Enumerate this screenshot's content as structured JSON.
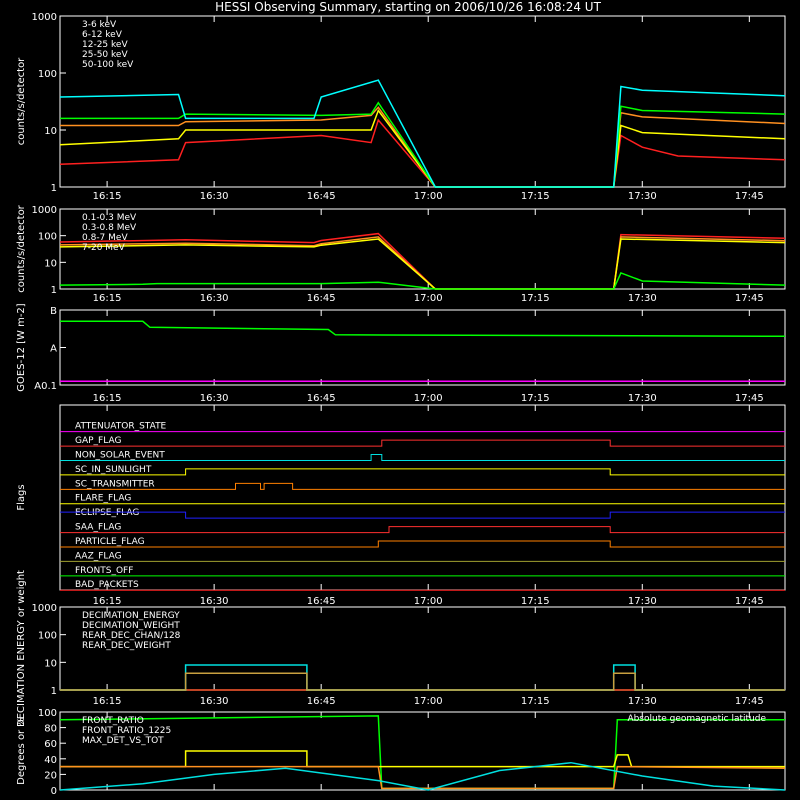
{
  "chart_data": {
    "title": "HESSI Observing Summary, starting on 2006/10/26 16:08:24 UT",
    "type": "line",
    "x_tick_labels": [
      "16:15",
      "16:30",
      "16:45",
      "17:00",
      "17:15",
      "17:30",
      "17:45"
    ],
    "time_range_minutes": [
      8.4,
      110
    ],
    "panels": [
      {
        "id": "low_energy",
        "type": "line",
        "ylabel": "counts/s/detector",
        "log_y": true,
        "ylim": [
          1,
          1000
        ],
        "y_tick_labels": [
          "1",
          "10",
          "100",
          "1000"
        ],
        "series": [
          {
            "name": "3-6 keV",
            "color": "#ff2020",
            "x": [
              8.4,
              25,
              26,
              45,
              52,
              53,
              61,
              61.5,
              86,
              87,
              90,
              95,
              110
            ],
            "y": [
              2.5,
              3,
              6,
              8,
              6,
              15,
              1,
              1,
              1,
              8,
              5,
              3.5,
              3
            ]
          },
          {
            "name": "6-12 keV",
            "color": "#ff9020",
            "x": [
              8.4,
              25,
              26,
              45,
              52,
              53,
              61,
              61.5,
              86,
              87,
              90,
              110
            ],
            "y": [
              12,
              12,
              14,
              15,
              18,
              25,
              1,
              1,
              1,
              20,
              17,
              13
            ]
          },
          {
            "name": "12-25 keV",
            "color": "#ffff00",
            "x": [
              8.4,
              25,
              26,
              45,
              52,
              53,
              61,
              61.5,
              86,
              87,
              90,
              110
            ],
            "y": [
              5.5,
              7,
              10,
              10,
              10,
              22,
              1,
              1,
              1,
              12,
              9,
              7
            ]
          },
          {
            "name": "25-50 keV",
            "color": "#00ff00",
            "x": [
              8.4,
              25,
              26,
              45,
              52,
              53,
              61,
              61.5,
              86,
              87,
              90,
              110
            ],
            "y": [
              16,
              16,
              19,
              18,
              19,
              30,
              1,
              1,
              1,
              26,
              22,
              19
            ]
          },
          {
            "name": "50-100 keV",
            "color": "#00ffff",
            "x": [
              8.4,
              25,
              26,
              44,
              45,
              53,
              61,
              61.5,
              86,
              87,
              90,
              110
            ],
            "y": [
              38,
              42,
              16,
              16,
              38,
              75,
              1,
              1,
              1,
              58,
              50,
              40
            ]
          }
        ]
      },
      {
        "id": "high_energy",
        "type": "line",
        "ylabel": "counts/s/detector",
        "log_y": true,
        "ylim": [
          1,
          1000
        ],
        "y_tick_labels": [
          "1",
          "10",
          "100",
          "1000"
        ],
        "series": [
          {
            "name": "0.1-0.3 MeV",
            "color": "#ff2020",
            "x": [
              8.4,
              26,
              44,
              45,
              53,
              61,
              61.5,
              86,
              87,
              110
            ],
            "y": [
              58,
              70,
              55,
              66,
              120,
              1,
              1,
              1,
              110,
              80
            ]
          },
          {
            "name": "0.3-0.8 MeV",
            "color": "#ff9020",
            "x": [
              8.4,
              26,
              44,
              45,
              53,
              61,
              61.5,
              86,
              87,
              110
            ],
            "y": [
              45,
              52,
              42,
              50,
              90,
              1,
              1,
              1,
              90,
              65
            ]
          },
          {
            "name": "0.8-7 MeV",
            "color": "#ffff00",
            "x": [
              8.4,
              26,
              44,
              45,
              53,
              61,
              61.5,
              86,
              87,
              110
            ],
            "y": [
              38,
              45,
              38,
              44,
              75,
              1,
              1,
              1,
              75,
              55
            ]
          },
          {
            "name": "7-20 MeV",
            "color": "#00ff00",
            "x": [
              8.4,
              20,
              22,
              45,
              53,
              61,
              61.5,
              86,
              87,
              90,
              110
            ],
            "y": [
              1.4,
              1.5,
              1.6,
              1.6,
              1.8,
              1,
              1,
              1,
              4,
              2,
              1.4
            ]
          }
        ]
      },
      {
        "id": "goes",
        "type": "line",
        "ylabel": "GOES-12 [W m-2]",
        "y_tick_labels": [
          "A0.1",
          "A",
          "B"
        ],
        "series": [
          {
            "color": "#00ff00",
            "x": [
              8.4,
              20,
              21,
              46,
              47,
              110
            ],
            "y": [
              0.85,
              0.85,
              0.77,
              0.74,
              0.67,
              0.65
            ]
          },
          {
            "color": "#ff00ff",
            "x": [
              8.4,
              110
            ],
            "y": [
              0.05,
              0.05
            ]
          }
        ]
      },
      {
        "id": "flags",
        "type": "step",
        "ylabel": "Flags",
        "flags": [
          {
            "name": "ATTENUATOR_STATE",
            "color": "#ff00ff",
            "segments": [
              [
                8.4,
                110,
                0
              ]
            ]
          },
          {
            "name": "GAP_FLAG",
            "color": "#ff3030",
            "segments": [
              [
                8.4,
                53.5,
                0
              ],
              [
                53.5,
                85.5,
                1
              ],
              [
                85.5,
                110,
                0
              ]
            ]
          },
          {
            "name": "NON_SOLAR_EVENT",
            "color": "#00e0e0",
            "segments": [
              [
                8.4,
                52,
                0
              ],
              [
                52,
                53.5,
                1
              ],
              [
                53.5,
                110,
                0
              ]
            ]
          },
          {
            "name": "SC_IN_SUNLIGHT",
            "color": "#ffff00",
            "segments": [
              [
                8.4,
                26,
                0
              ],
              [
                26,
                85.5,
                1
              ],
              [
                85.5,
                110,
                0
              ]
            ]
          },
          {
            "name": "SC_TRANSMITTER",
            "color": "#ff8000",
            "segments": [
              [
                8.4,
                33,
                0
              ],
              [
                33,
                36.5,
                1
              ],
              [
                36.5,
                37,
                0
              ],
              [
                37,
                41,
                1
              ],
              [
                41,
                110,
                0
              ]
            ]
          },
          {
            "name": "FLARE_FLAG",
            "color": "#ffff00",
            "segments": [
              [
                8.4,
                110,
                0
              ]
            ]
          },
          {
            "name": "ECLIPSE_FLAG",
            "color": "#2020ff",
            "segments": [
              [
                8.4,
                26,
                1
              ],
              [
                26,
                85.5,
                0
              ],
              [
                85.5,
                110,
                1
              ]
            ]
          },
          {
            "name": "SAA_FLAG",
            "color": "#ff3030",
            "segments": [
              [
                8.4,
                54.5,
                0
              ],
              [
                54.5,
                85.5,
                1
              ],
              [
                85.5,
                110,
                0
              ]
            ]
          },
          {
            "name": "PARTICLE_FLAG",
            "color": "#ff8000",
            "segments": [
              [
                8.4,
                53,
                0
              ],
              [
                53,
                85.5,
                1
              ],
              [
                85.5,
                110,
                0
              ]
            ]
          },
          {
            "name": "AAZ_FLAG",
            "color": "#a0a030",
            "segments": [
              [
                8.4,
                110,
                0
              ]
            ]
          },
          {
            "name": "FRONTS_OFF",
            "color": "#00ff00",
            "segments": [
              [
                8.4,
                110,
                0
              ]
            ]
          },
          {
            "name": "BAD_PACKETS",
            "color": "#ff2020",
            "segments": [
              [
                8.4,
                110,
                0
              ]
            ]
          }
        ]
      },
      {
        "id": "decimation",
        "type": "step",
        "ylabel": "DECIMATION ENERGY or weight",
        "log_y": true,
        "ylim": [
          1,
          1000
        ],
        "y_tick_labels": [
          "1",
          "10",
          "100",
          "1000"
        ],
        "series": [
          {
            "name": "DECIMATION_ENERGY",
            "color": "#00ff00",
            "x": [
              8.4,
              110
            ],
            "y": [
              1,
              1
            ]
          },
          {
            "name": "DECIMATION_WEIGHT",
            "color": "#ff3030",
            "x": [
              8.4,
              110
            ],
            "y": [
              1,
              1
            ]
          },
          {
            "name": "REAR_DEC_CHAN/128",
            "color": "#00e0e0",
            "x": [
              8.4,
              26,
              26,
              43,
              43,
              86,
              86,
              89,
              89,
              110
            ],
            "y": [
              1,
              1,
              8,
              8,
              1,
              1,
              8,
              8,
              1,
              1
            ]
          },
          {
            "name": "REAR_DEC_WEIGHT",
            "color": "#c8a040",
            "x": [
              8.4,
              26,
              26,
              43,
              43,
              86,
              86,
              89,
              89,
              110
            ],
            "y": [
              1,
              1,
              4,
              4,
              1,
              1,
              4,
              4,
              1,
              1
            ]
          }
        ]
      },
      {
        "id": "ratios",
        "type": "line",
        "ylabel": "Degrees or %",
        "ylim": [
          0,
          100
        ],
        "y_tick_labels": [
          "0",
          "20",
          "40",
          "60",
          "80",
          "100"
        ],
        "series": [
          {
            "name": "FRONT_RATIO",
            "color": "#00ff00",
            "x": [
              8.4,
              53,
              53.5,
              86,
              86.5,
              110
            ],
            "y": [
              90,
              95,
              2,
              2,
              90,
              90
            ]
          },
          {
            "name": "FRONT_RATIO_1225",
            "color": "#ffff00",
            "x": [
              8.4,
              26,
              26,
              43,
              43,
              86,
              86.5,
              88,
              88.5,
              110
            ],
            "y": [
              30,
              30,
              50,
              50,
              30,
              30,
              45,
              45,
              30,
              30
            ]
          },
          {
            "name": "MAX_DET_VS_TOT",
            "color": "#ff9020",
            "x": [
              8.4,
              53,
              53.5,
              86,
              86.5,
              110
            ],
            "y": [
              30,
              30,
              2,
              2,
              30,
              28
            ]
          },
          {
            "name": "Absolute geomagnetic latitude",
            "color": "#00e0e0",
            "x": [
              8.4,
              20,
              30,
              40,
              53,
              60,
              70,
              80,
              90,
              100,
              110
            ],
            "y": [
              0,
              8,
              20,
              28,
              12,
              0,
              25,
              35,
              18,
              5,
              0
            ]
          }
        ]
      }
    ]
  }
}
